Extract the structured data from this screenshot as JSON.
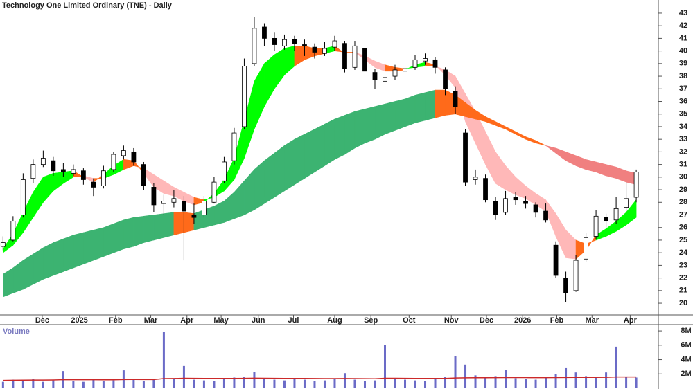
{
  "chart_data": {
    "type": "candlestick",
    "title": "Technology One Limited Ordinary (TNE) - Daily",
    "xlim": [
      -0.3,
      65.2
    ],
    "xticks": [
      {
        "value": 3.9,
        "label": "Dec"
      },
      {
        "value": 7.6,
        "label": "2025"
      },
      {
        "value": 11.2,
        "label": "Feb"
      },
      {
        "value": 14.7,
        "label": "Mar"
      },
      {
        "value": 18.3,
        "label": "Apr"
      },
      {
        "value": 21.7,
        "label": "May"
      },
      {
        "value": 25.4,
        "label": "Jun"
      },
      {
        "value": 28.9,
        "label": "Jul"
      },
      {
        "value": 33.0,
        "label": "Aug"
      },
      {
        "value": 36.6,
        "label": "Sep"
      },
      {
        "value": 40.4,
        "label": "Oct"
      },
      {
        "value": 44.6,
        "label": "Nov"
      },
      {
        "value": 48.1,
        "label": "Dec"
      },
      {
        "value": 51.7,
        "label": "2026"
      },
      {
        "value": 55.1,
        "label": "Feb"
      },
      {
        "value": 58.6,
        "label": "Mar"
      },
      {
        "value": 62.4,
        "label": "Apr"
      }
    ],
    "ylim": [
      19.07,
      44.04
    ],
    "yticks": [
      20,
      21,
      22,
      23,
      24,
      25,
      26,
      27,
      28,
      29,
      30,
      31,
      32,
      33,
      34,
      35,
      36,
      37,
      38,
      39,
      40,
      41,
      42,
      43
    ],
    "up_color": "#ffffff",
    "down_color": "#000000",
    "open": [
      24.5,
      25.0,
      27.0,
      29.9,
      31.0,
      31.3,
      30.6,
      30.3,
      30.5,
      29.6,
      29.3,
      30.6,
      31.7,
      32.0,
      31.0,
      29.2,
      27.9,
      28.0,
      28.1,
      27.0,
      27.0,
      28.0,
      29.7,
      31.3,
      34.0,
      39.0,
      41.9,
      41.0,
      40.4,
      40.9,
      40.5,
      40.3,
      39.8,
      40.3,
      40.6,
      38.7,
      40.2,
      38.3,
      37.6,
      38.0,
      38.4,
      38.7,
      39.2,
      39.3,
      38.5,
      36.8,
      33.5,
      29.8,
      29.9,
      28.1,
      27.2,
      28.4,
      28.1,
      27.8,
      27.3,
      24.6,
      22.0,
      21.0,
      23.5,
      25.3,
      26.8,
      26.6,
      27.6,
      28.4
    ],
    "high": [
      25.3,
      26.9,
      30.3,
      31.4,
      32.1,
      31.6,
      31.1,
      31.0,
      30.7,
      29.9,
      30.9,
      32.0,
      32.5,
      32.3,
      31.2,
      29.5,
      28.6,
      29.0,
      28.5,
      27.9,
      28.5,
      30.0,
      31.6,
      33.9,
      39.4,
      42.7,
      42.2,
      41.5,
      41.3,
      41.2,
      40.9,
      40.6,
      40.7,
      41.2,
      40.8,
      40.8,
      40.3,
      38.6,
      38.4,
      38.9,
      39.0,
      39.7,
      39.8,
      39.5,
      38.7,
      37.2,
      33.8,
      30.6,
      30.2,
      28.4,
      28.9,
      28.8,
      28.5,
      28.0,
      27.9,
      24.9,
      22.5,
      23.8,
      25.6,
      27.4,
      27.1,
      28.4,
      29.6,
      30.6
    ],
    "low": [
      24.2,
      24.9,
      26.8,
      29.5,
      30.8,
      30.1,
      30.0,
      30.1,
      29.4,
      28.5,
      29.1,
      30.4,
      31.4,
      30.9,
      29.0,
      27.2,
      27.0,
      27.6,
      23.4,
      26.3,
      26.8,
      27.9,
      29.5,
      31.0,
      33.8,
      38.8,
      40.4,
      40.0,
      40.1,
      40.0,
      39.6,
      39.4,
      39.6,
      40.0,
      38.3,
      38.5,
      38.0,
      37.0,
      37.1,
      37.7,
      38.1,
      38.5,
      38.9,
      38.2,
      36.5,
      35.0,
      29.3,
      29.4,
      28.0,
      26.6,
      27.0,
      27.8,
      27.5,
      26.8,
      26.4,
      22.0,
      20.1,
      20.9,
      23.3,
      25.1,
      26.0,
      26.3,
      27.2,
      28.0
    ],
    "close": [
      24.8,
      26.5,
      29.8,
      31.0,
      31.5,
      30.5,
      30.4,
      30.6,
      29.8,
      29.2,
      30.5,
      31.8,
      32.1,
      31.2,
      29.3,
      27.8,
      28.1,
      28.3,
      27.3,
      26.8,
      28.1,
      29.6,
      31.2,
      33.5,
      38.8,
      41.8,
      41.0,
      40.5,
      40.9,
      40.6,
      40.4,
      39.9,
      40.2,
      40.8,
      38.6,
      40.4,
      38.4,
      37.7,
      37.9,
      38.5,
      38.6,
      39.3,
      39.4,
      38.7,
      37.0,
      35.6,
      29.6,
      30.0,
      28.2,
      27.0,
      28.3,
      28.2,
      27.9,
      27.2,
      26.6,
      22.2,
      20.8,
      23.4,
      25.2,
      26.9,
      26.5,
      27.5,
      28.3,
      30.4
    ],
    "ribbons": [
      {
        "rising_color": "#00ff00",
        "falling_color": "#ffb8b8",
        "mixed_color": "#ff6a1a",
        "fast": [
          24.3,
          25.5,
          27.2,
          28.8,
          30.0,
          30.3,
          30.4,
          30.5,
          30.0,
          29.6,
          30.2,
          30.9,
          31.4,
          31.3,
          30.3,
          29.2,
          28.7,
          28.5,
          28.1,
          27.8,
          28.0,
          28.7,
          29.8,
          31.5,
          34.5,
          37.6,
          39.0,
          39.7,
          40.2,
          40.4,
          40.4,
          40.2,
          40.2,
          40.4,
          39.8,
          39.9,
          39.3,
          38.7,
          38.4,
          38.4,
          38.5,
          38.9,
          39.1,
          38.9,
          38.1,
          37.1,
          34.4,
          32.7,
          31.0,
          29.5,
          29.0,
          28.6,
          28.3,
          27.8,
          27.3,
          25.3,
          23.6,
          23.5,
          24.2,
          25.4,
          25.9,
          26.5,
          27.2,
          28.2
        ],
        "slow": [
          24.0,
          24.6,
          25.6,
          26.8,
          28.0,
          28.9,
          29.5,
          30.0,
          30.1,
          29.9,
          29.9,
          30.2,
          30.6,
          30.9,
          30.7,
          30.2,
          29.7,
          29.2,
          28.8,
          28.4,
          28.2,
          28.4,
          28.9,
          29.8,
          31.5,
          33.8,
          35.6,
          37.0,
          38.1,
          38.8,
          39.3,
          39.6,
          39.8,
          40.0,
          39.9,
          39.9,
          39.6,
          39.2,
          38.9,
          38.7,
          38.6,
          38.7,
          38.8,
          38.8,
          38.5,
          38.0,
          36.6,
          35.2,
          33.6,
          32.0,
          30.9,
          30.0,
          29.3,
          28.7,
          28.2,
          27.1,
          25.8,
          25.0,
          24.7,
          25.0,
          25.3,
          25.7,
          26.2,
          26.8
        ]
      },
      {
        "rising_color": "#3cb371",
        "falling_color": "#f08080",
        "mixed_color": "#ff6a1a",
        "fast": [
          22.3,
          22.8,
          23.4,
          23.9,
          24.4,
          24.8,
          25.1,
          25.4,
          25.6,
          25.8,
          26.0,
          26.3,
          26.6,
          26.8,
          26.9,
          27.0,
          27.1,
          27.2,
          27.2,
          27.1,
          27.4,
          27.7,
          28.1,
          28.8,
          29.7,
          30.6,
          31.3,
          31.9,
          32.5,
          33.0,
          33.4,
          33.8,
          34.2,
          34.6,
          34.9,
          35.2,
          35.4,
          35.6,
          35.8,
          36.0,
          36.2,
          36.5,
          36.7,
          36.9,
          36.9,
          36.5,
          35.9,
          35.3,
          34.8,
          34.4,
          34.0,
          33.6,
          33.2,
          32.9,
          32.5,
          31.9,
          31.3,
          30.9,
          30.6,
          30.4,
          30.1,
          29.9,
          29.6,
          29.4
        ],
        "slow": [
          20.5,
          20.8,
          21.1,
          21.5,
          21.9,
          22.2,
          22.5,
          22.8,
          23.1,
          23.4,
          23.7,
          24.0,
          24.3,
          24.5,
          24.8,
          25.0,
          25.2,
          25.4,
          25.6,
          25.8,
          26.0,
          26.2,
          26.4,
          26.7,
          27.0,
          27.4,
          27.9,
          28.4,
          28.9,
          29.4,
          29.9,
          30.4,
          30.9,
          31.4,
          31.8,
          32.3,
          32.7,
          33.0,
          33.4,
          33.7,
          34.0,
          34.3,
          34.5,
          34.7,
          34.9,
          35.0,
          34.8,
          34.6,
          34.4,
          34.1,
          33.8,
          33.4,
          33.0,
          32.7,
          32.5,
          32.3,
          32.0,
          31.7,
          31.4,
          31.2,
          31.0,
          30.8,
          30.5,
          30.3
        ]
      }
    ],
    "volume_panel": {
      "label": "Volume",
      "ylim": [
        0,
        8780000
      ],
      "yticks": [
        {
          "value": 2000000,
          "label": "2M"
        },
        {
          "value": 4000000,
          "label": "4M"
        },
        {
          "value": 6000000,
          "label": "6M"
        },
        {
          "value": 8000000,
          "label": "8M"
        }
      ],
      "color": "#6b6bc7",
      "average_color": "#cc2a2a",
      "volume": [
        900000,
        1200000,
        1000000,
        1300000,
        900000,
        1100000,
        2400000,
        1000000,
        900000,
        1200000,
        1000000,
        1100000,
        2500000,
        1300000,
        1000000,
        1200000,
        7900000,
        1400000,
        3100000,
        1200000,
        1100000,
        1000000,
        1300000,
        1500000,
        1600000,
        2300000,
        1300000,
        1200000,
        1100000,
        1400000,
        1200000,
        1000000,
        1100000,
        1300000,
        2100000,
        1200000,
        1000000,
        1100000,
        6000000,
        1300000,
        1200000,
        1100000,
        1000000,
        1300000,
        1600000,
        4500000,
        3300000,
        1800000,
        1500000,
        1700000,
        2600000,
        1400000,
        1300000,
        1200000,
        1500000,
        2000000,
        2900000,
        2200000,
        1700000,
        1600000,
        2200000,
        5800000,
        1600000,
        1500000
      ],
      "average": [
        1100000,
        1120000,
        1130000,
        1150000,
        1150000,
        1160000,
        1200000,
        1200000,
        1190000,
        1190000,
        1180000,
        1180000,
        1220000,
        1230000,
        1220000,
        1220000,
        1350000,
        1360000,
        1400000,
        1390000,
        1380000,
        1370000,
        1370000,
        1380000,
        1390000,
        1410000,
        1400000,
        1390000,
        1380000,
        1380000,
        1370000,
        1360000,
        1350000,
        1350000,
        1360000,
        1350000,
        1340000,
        1330000,
        1400000,
        1400000,
        1390000,
        1380000,
        1370000,
        1370000,
        1380000,
        1430000,
        1460000,
        1470000,
        1470000,
        1480000,
        1500000,
        1500000,
        1490000,
        1480000,
        1480000,
        1490000,
        1510000,
        1520000,
        1520000,
        1520000,
        1530000,
        1580000,
        1580000,
        1580000
      ]
    }
  }
}
